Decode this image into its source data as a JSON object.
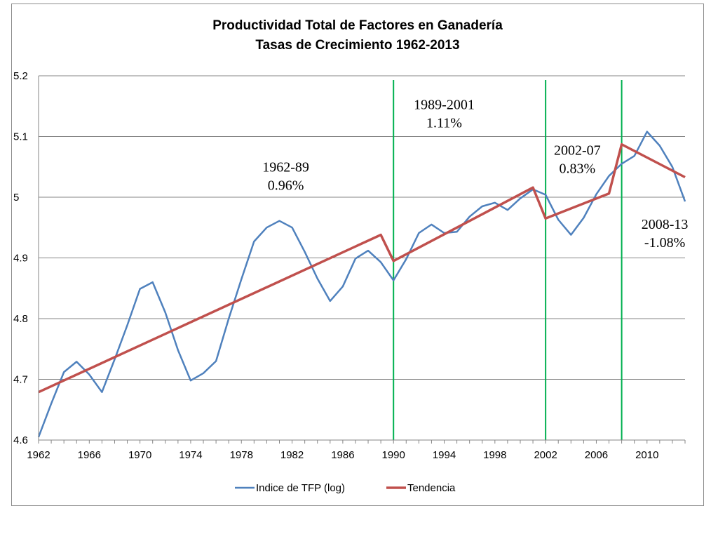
{
  "chart_data": {
    "type": "line",
    "title": "Productividad Total de Factores en Ganadería",
    "subtitle": "Tasas de Crecimiento 1962-2013",
    "xlim": [
      1962,
      2013
    ],
    "ylim": [
      4.6,
      5.2
    ],
    "x_ticks": [
      1962,
      1966,
      1970,
      1974,
      1978,
      1982,
      1986,
      1990,
      1994,
      1998,
      2002,
      2006,
      2010
    ],
    "x_tick_labels": [
      "1962",
      "1966",
      "1970",
      "1974",
      "1978",
      "1982",
      "1986",
      "1990",
      "1994",
      "1998",
      "2002",
      "2006",
      "2010"
    ],
    "y_ticks": [
      4.6,
      4.7,
      4.8,
      4.9,
      5.0,
      5.1,
      5.2
    ],
    "y_tick_labels": [
      "4.6",
      "4.7",
      "4.8",
      "4.9",
      "5",
      "5.1",
      "5.2"
    ],
    "grid": "horizontal",
    "legend_position": "bottom",
    "series": [
      {
        "name": "Indice de TFP (log)",
        "color": "#4f81bd",
        "x": [
          1962,
          1963,
          1964,
          1965,
          1966,
          1967,
          1968,
          1969,
          1970,
          1971,
          1972,
          1973,
          1974,
          1975,
          1976,
          1977,
          1978,
          1979,
          1980,
          1981,
          1982,
          1983,
          1984,
          1985,
          1986,
          1987,
          1988,
          1989,
          1990,
          1991,
          1992,
          1993,
          1994,
          1995,
          1996,
          1997,
          1998,
          1999,
          2000,
          2001,
          2002,
          2003,
          2004,
          2005,
          2006,
          2007,
          2008,
          2009,
          2010,
          2011,
          2012,
          2013
        ],
        "y": [
          4.605,
          4.66,
          4.712,
          4.729,
          4.708,
          4.679,
          4.733,
          4.789,
          4.849,
          4.86,
          4.81,
          4.748,
          4.698,
          4.71,
          4.73,
          4.8,
          4.865,
          4.927,
          4.95,
          4.961,
          4.95,
          4.91,
          4.866,
          4.829,
          4.853,
          4.899,
          4.912,
          4.893,
          4.863,
          4.898,
          4.941,
          4.955,
          4.941,
          4.943,
          4.968,
          4.985,
          4.991,
          4.979,
          4.998,
          5.013,
          5.004,
          4.963,
          4.938,
          4.966,
          5.005,
          5.035,
          5.055,
          5.068,
          5.108,
          5.085,
          5.05,
          4.993
        ]
      },
      {
        "name": "Tendencia",
        "color": "#c0504d",
        "segments": [
          {
            "x": [
              1962,
              1989
            ],
            "y": [
              4.679,
              4.938
            ]
          },
          {
            "x": [
              1990,
              2001
            ],
            "y": [
              4.895,
              5.016
            ]
          },
          {
            "x": [
              2002,
              2007
            ],
            "y": [
              4.965,
              5.006
            ]
          },
          {
            "x": [
              2008,
              2013
            ],
            "y": [
              5.087,
              5.033
            ]
          }
        ]
      }
    ],
    "vertical_lines": {
      "color": "#00b050",
      "x": [
        1990,
        2002,
        2008
      ]
    },
    "annotations": [
      {
        "lines": [
          "1962-89",
          "0.96%"
        ],
        "x": 1981.5,
        "y": 5.042
      },
      {
        "lines": [
          "1989-2001",
          "1.11%"
        ],
        "x": 1994,
        "y": 5.145
      },
      {
        "lines": [
          "2002-07",
          "0.83%"
        ],
        "x": 2004.5,
        "y": 5.07
      },
      {
        "lines": [
          "2008-13",
          "-1.08%"
        ],
        "x": 2011.4,
        "y": 4.948
      }
    ]
  }
}
